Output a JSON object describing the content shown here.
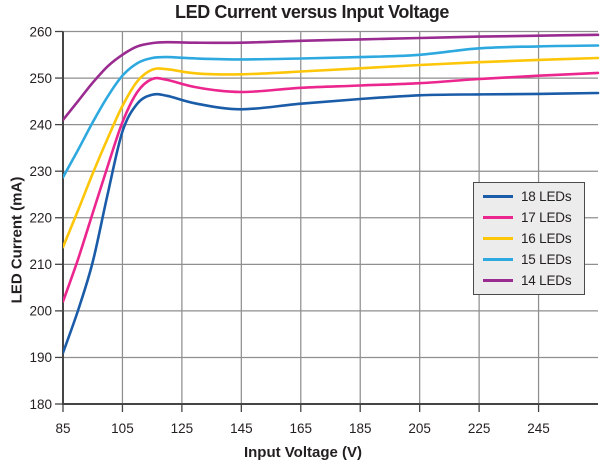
{
  "chart_data": {
    "type": "line",
    "title": "LED Current versus Input Voltage",
    "xlabel": "Input Voltage (V)",
    "ylabel": "LED Current (mA)",
    "xlim": [
      85,
      265
    ],
    "ylim": [
      180,
      260
    ],
    "x_ticks": [
      "85",
      "105",
      "125",
      "145",
      "165",
      "185",
      "205",
      "225",
      "245"
    ],
    "x_tick_values": [
      85,
      105,
      125,
      145,
      165,
      185,
      205,
      225,
      245
    ],
    "y_ticks": [
      "180",
      "190",
      "200",
      "210",
      "220",
      "230",
      "240",
      "250",
      "260"
    ],
    "y_tick_values": [
      180,
      190,
      200,
      210,
      220,
      230,
      240,
      250,
      260
    ],
    "grid": true,
    "legend_position": "middle-right",
    "x": [
      85,
      90,
      95,
      100,
      105,
      110,
      115,
      120,
      130,
      145,
      165,
      185,
      205,
      225,
      245,
      265
    ],
    "series": [
      {
        "name": "18 LEDs",
        "color": "#1b5ca8",
        "values": [
          191.0,
          200.0,
          210.5,
          225.0,
          238.5,
          244.5,
          246.4,
          246.2,
          244.5,
          243.3,
          244.5,
          245.5,
          246.3,
          246.5,
          246.6,
          246.8
        ]
      },
      {
        "name": "17 LEDs",
        "color": "#ec268f",
        "values": [
          202.0,
          211.0,
          221.0,
          231.0,
          240.5,
          247.0,
          249.8,
          249.6,
          248.0,
          247.0,
          247.9,
          248.4,
          248.9,
          249.8,
          250.5,
          251.1
        ]
      },
      {
        "name": "16 LEDs",
        "color": "#fdc608",
        "values": [
          213.7,
          221.5,
          229.5,
          237.0,
          244.0,
          249.3,
          251.8,
          251.9,
          251.0,
          250.8,
          251.4,
          252.1,
          252.8,
          253.4,
          253.9,
          254.3
        ]
      },
      {
        "name": "15 LEDs",
        "color": "#2da9e0",
        "values": [
          228.7,
          234.5,
          240.5,
          246.0,
          250.5,
          253.2,
          254.3,
          254.5,
          254.2,
          254.0,
          254.2,
          254.5,
          255.0,
          256.4,
          256.8,
          257.0
        ]
      },
      {
        "name": "14 LEDs",
        "color": "#9a2b90",
        "values": [
          241.0,
          245.0,
          249.0,
          252.5,
          255.0,
          256.8,
          257.5,
          257.7,
          257.6,
          257.6,
          258.0,
          258.3,
          258.6,
          258.9,
          259.1,
          259.3
        ]
      }
    ]
  },
  "legend": {
    "entries": [
      "18 LEDs",
      "17 LEDs",
      "16 LEDs",
      "15 LEDs",
      "14 LEDs"
    ]
  },
  "style": {
    "grid_color": "#8f8f8f",
    "axis_color": "#454545",
    "text_color": "#231f20",
    "legend_bg": "#ececec",
    "background": "#ffffff"
  }
}
